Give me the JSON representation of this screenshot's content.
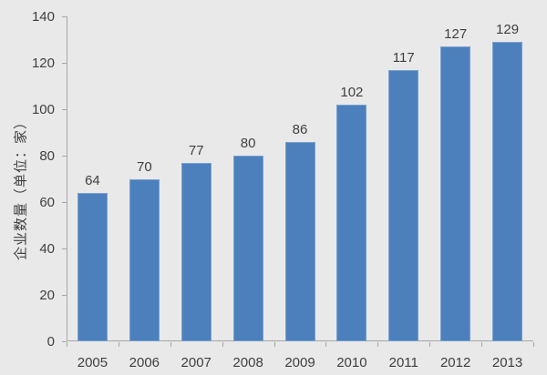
{
  "chart_data": {
    "type": "bar",
    "categories": [
      "2005",
      "2006",
      "2007",
      "2008",
      "2009",
      "2010",
      "2011",
      "2012",
      "2013"
    ],
    "values": [
      64,
      70,
      77,
      80,
      86,
      102,
      117,
      127,
      129
    ],
    "title": "",
    "xlabel": "",
    "ylabel": "企业数量（单位：家）",
    "ylim": [
      0,
      140
    ],
    "yticks": [
      0,
      20,
      40,
      60,
      80,
      100,
      120,
      140
    ],
    "grid": false,
    "legend_position": "none",
    "data_labels_shown": true,
    "colors": {
      "bar": "#4c80bd",
      "background": "#e9e9e9",
      "axis": "#a6a6a6",
      "text": "#3f3f3f"
    }
  }
}
